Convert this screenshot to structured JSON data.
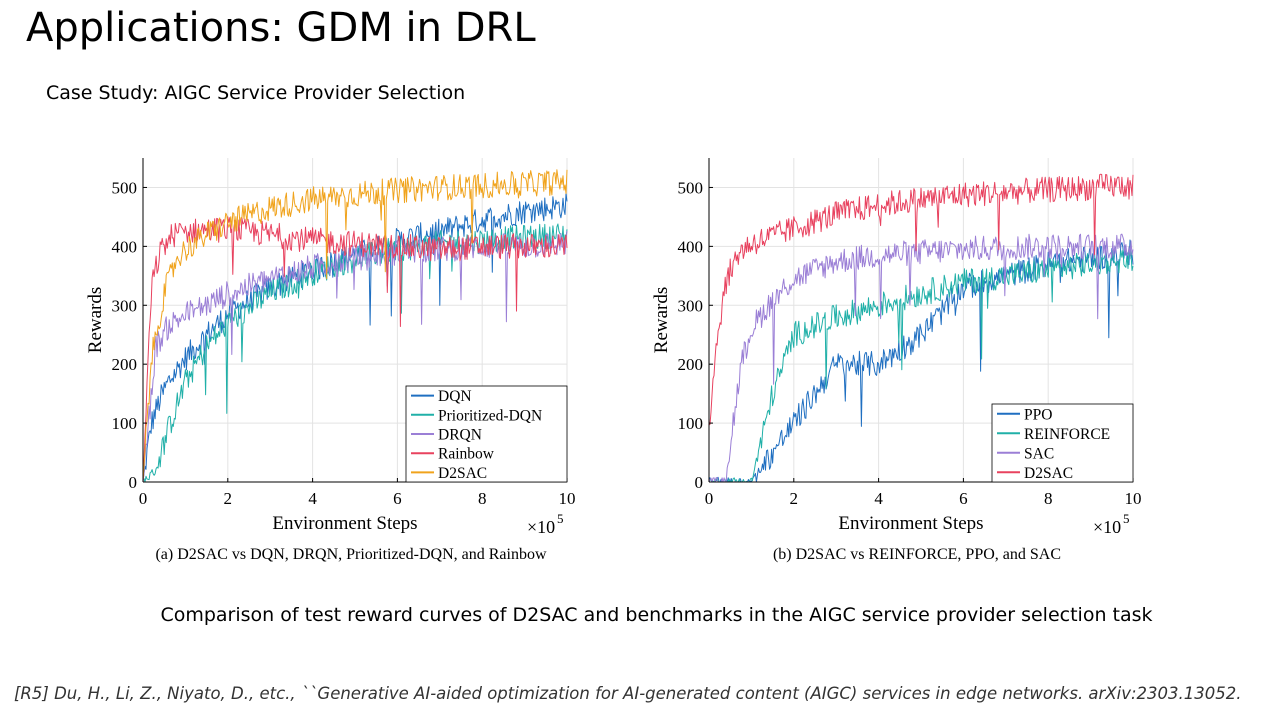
{
  "slide": {
    "title": "Applications: GDM in DRL",
    "subtitle": "Case Study: AIGC Service Provider Selection",
    "caption": "Comparison of test reward curves of D2SAC and benchmarks in the AIGC service provider selection task",
    "reference": "[R5] Du, H., Li, Z., Niyato, D., etc., ``Generative AI-aided optimization for AI-generated content (AIGC) services in edge networks. arXiv:2303.13052."
  },
  "chart_data": [
    {
      "type": "line",
      "caption": "(a) D2SAC vs DQN, DRQN, Prioritized-DQN, and Rainbow",
      "xlabel": "Environment Steps",
      "ylabel": "Rewards",
      "x_multiplier": "×10",
      "x_multiplier_exp": "5",
      "xlim": [
        0,
        10
      ],
      "ylim": [
        0,
        550
      ],
      "xticks": [
        0,
        2,
        4,
        6,
        8,
        10
      ],
      "yticks": [
        0,
        100,
        200,
        300,
        400,
        500
      ],
      "grid": true,
      "legend_position": "bottom-right",
      "series": [
        {
          "name": "DQN",
          "color": "#1f6fc1",
          "x": [
            0,
            0.2,
            0.4,
            0.6,
            1,
            1.5,
            2,
            3,
            4,
            5,
            6,
            7,
            8,
            9,
            10
          ],
          "y": [
            0,
            100,
            140,
            170,
            210,
            250,
            285,
            330,
            360,
            385,
            410,
            425,
            445,
            460,
            470
          ]
        },
        {
          "name": "Prioritized-DQN",
          "color": "#20b0a8",
          "x": [
            0,
            0.3,
            0.6,
            1,
            1.5,
            2,
            3,
            4,
            5,
            6,
            7,
            8,
            9,
            10
          ],
          "y": [
            0,
            20,
            90,
            170,
            230,
            270,
            320,
            355,
            380,
            395,
            405,
            410,
            415,
            420
          ]
        },
        {
          "name": "DRQN",
          "color": "#9b7fd6",
          "x": [
            0,
            0.3,
            0.6,
            1,
            1.5,
            2,
            3,
            4,
            5,
            6,
            7,
            8,
            9,
            10
          ],
          "y": [
            0,
            230,
            265,
            285,
            300,
            320,
            345,
            365,
            380,
            390,
            395,
            400,
            400,
            405
          ]
        },
        {
          "name": "Rainbow",
          "color": "#e8425f",
          "x": [
            0,
            0.2,
            0.4,
            0.7,
            1,
            2,
            3,
            4,
            5,
            6,
            7,
            8,
            9,
            10
          ],
          "y": [
            0,
            330,
            390,
            420,
            425,
            430,
            420,
            410,
            405,
            400,
            395,
            400,
            400,
            400
          ]
        },
        {
          "name": "D2SAC",
          "color": "#f0a31c",
          "x": [
            0,
            0.2,
            0.5,
            0.8,
            1,
            1.5,
            2,
            3,
            4,
            5,
            6,
            7,
            8,
            9,
            10
          ],
          "y": [
            0,
            210,
            320,
            380,
            395,
            420,
            440,
            465,
            480,
            488,
            495,
            500,
            503,
            506,
            510
          ]
        }
      ]
    },
    {
      "type": "line",
      "caption": "(b) D2SAC vs REINFORCE, PPO, and SAC",
      "xlabel": "Environment Steps",
      "ylabel": "Rewards",
      "x_multiplier": "×10",
      "x_multiplier_exp": "5",
      "xlim": [
        0,
        10
      ],
      "ylim": [
        0,
        550
      ],
      "xticks": [
        0,
        2,
        4,
        6,
        8,
        10
      ],
      "yticks": [
        0,
        100,
        200,
        300,
        400,
        500
      ],
      "grid": true,
      "legend_position": "bottom-right",
      "series": [
        {
          "name": "PPO",
          "color": "#1f6fc1",
          "x": [
            0,
            1,
            2,
            3,
            4,
            5,
            6,
            7,
            8,
            9,
            10
          ],
          "y": [
            0,
            0,
            100,
            200,
            200,
            250,
            330,
            350,
            370,
            380,
            390
          ]
        },
        {
          "name": "REINFORCE",
          "color": "#20b0a8",
          "x": [
            0,
            1,
            1.5,
            2,
            3,
            4,
            5,
            6,
            7,
            8,
            9,
            10
          ],
          "y": [
            0,
            0,
            150,
            250,
            280,
            300,
            320,
            340,
            350,
            360,
            370,
            380
          ]
        },
        {
          "name": "SAC",
          "color": "#9b7fd6",
          "x": [
            0,
            0.4,
            0.6,
            0.8,
            1,
            1.5,
            2,
            3,
            4,
            5,
            6,
            7,
            8,
            9,
            10
          ],
          "y": [
            0,
            0,
            120,
            210,
            260,
            310,
            345,
            375,
            385,
            390,
            395,
            398,
            400,
            400,
            400
          ]
        },
        {
          "name": "D2SAC",
          "color": "#e8425f",
          "x": [
            0,
            0.2,
            0.4,
            0.7,
            1,
            2,
            3,
            4,
            5,
            6,
            7,
            8,
            9,
            10
          ],
          "y": [
            100,
            250,
            340,
            390,
            405,
            430,
            455,
            470,
            480,
            488,
            492,
            496,
            500,
            505
          ]
        }
      ]
    }
  ]
}
